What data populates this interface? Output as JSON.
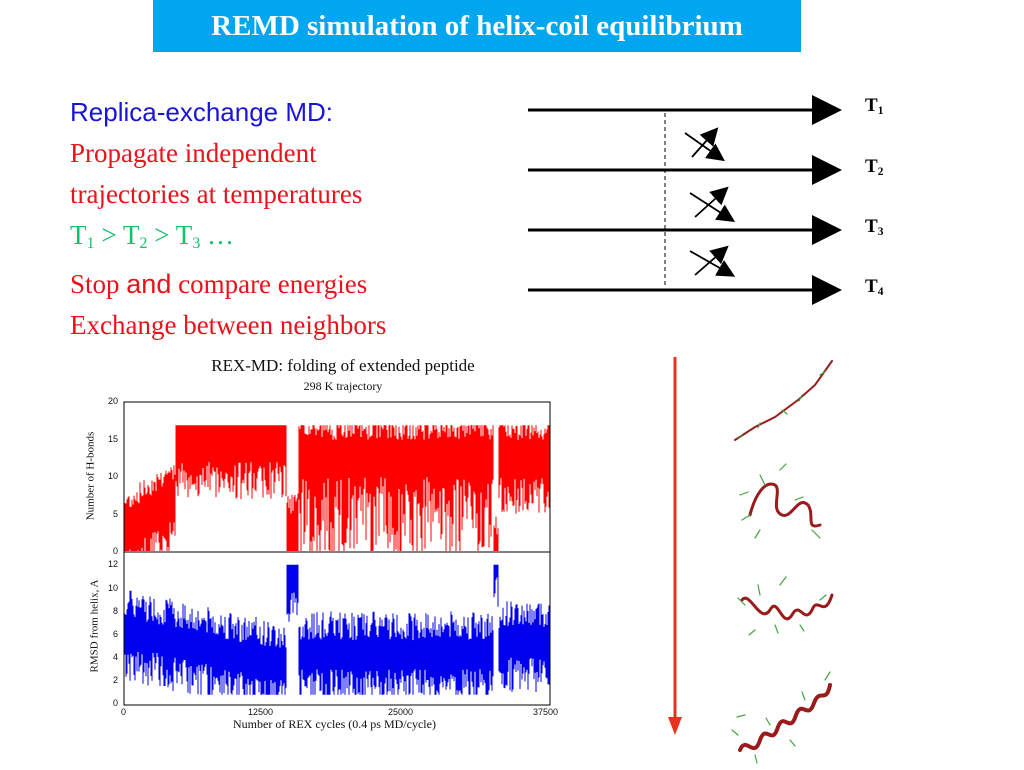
{
  "title": "REMD simulation of helix-coil equilibrium",
  "text": {
    "heading": "Replica-exchange MD:",
    "line1": "Propagate independent",
    "line2": "trajectories at temperatures",
    "temps_line": {
      "t": "T",
      "s1": "1",
      "gt": " > ",
      "s2": "2",
      "s3": "3",
      "ellipsis": " …"
    },
    "stop_word": "Stop",
    "and_word": "and",
    "compare_word": "compare energies",
    "exchange_line": "Exchange between neighbors"
  },
  "diagram": {
    "labels": [
      {
        "t": "T",
        "sub": "1"
      },
      {
        "t": "T",
        "sub": "2"
      },
      {
        "t": "T",
        "sub": "3"
      },
      {
        "t": "T",
        "sub": "4"
      }
    ]
  },
  "figure": {
    "title": "REX-MD: folding of extended peptide",
    "subtitle": "298 K trajectory",
    "top_ylabel": "Number of H-bonds",
    "bottom_ylabel": "RMSD from helix, A",
    "xlabel": "Number of REX cycles  (0.4 ps MD/cycle)",
    "top_yticks": [
      "20",
      "15",
      "10",
      "5",
      "0"
    ],
    "bottom_yticks": [
      "12",
      "10",
      "8",
      "6",
      "4",
      "2",
      "0"
    ],
    "xticks": [
      "0",
      "12500",
      "25000",
      "37500"
    ],
    "colors": {
      "hbonds": "#ff0000",
      "rmsd": "#0000ee"
    }
  },
  "colors": {
    "title_bg": "#00a6ee",
    "arrow": "#e8321b",
    "helix": "#9a1b1b",
    "sidechain": "#3fa63f"
  }
}
